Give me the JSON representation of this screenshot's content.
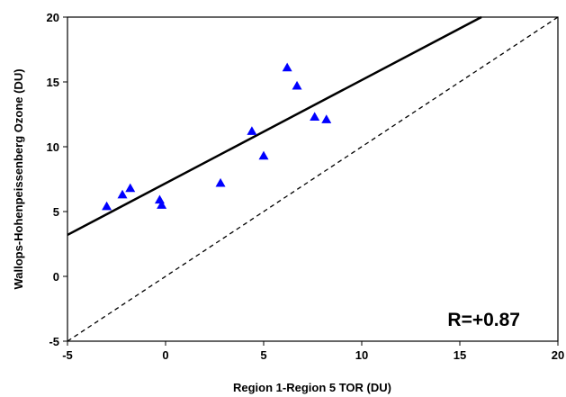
{
  "chart_data": {
    "type": "scatter",
    "title": "",
    "xlabel": "Region 1-Region 5 TOR (DU)",
    "ylabel": "Wallops-Hohenpeissenberg Ozone (DU)",
    "xlim": [
      -5,
      20
    ],
    "ylim": [
      -5,
      20
    ],
    "x_ticks": [
      "-5",
      "0",
      "5",
      "10",
      "15",
      "20"
    ],
    "y_ticks": [
      "-5",
      "0",
      "5",
      "10",
      "15",
      "20"
    ],
    "grid": false,
    "legend": "none",
    "series": [
      {
        "marker": "triangle",
        "color": "#0000ff",
        "points": [
          {
            "x": -3.0,
            "y": 5.4
          },
          {
            "x": -2.2,
            "y": 6.3
          },
          {
            "x": -1.8,
            "y": 6.8
          },
          {
            "x": -0.3,
            "y": 5.9
          },
          {
            "x": -0.2,
            "y": 5.5
          },
          {
            "x": 2.8,
            "y": 7.2
          },
          {
            "x": 4.4,
            "y": 11.2
          },
          {
            "x": 5.0,
            "y": 9.3
          },
          {
            "x": 6.2,
            "y": 16.1
          },
          {
            "x": 6.7,
            "y": 14.7
          },
          {
            "x": 7.6,
            "y": 12.3
          },
          {
            "x": 8.2,
            "y": 12.1
          }
        ]
      }
    ],
    "lines": [
      {
        "style": "solid",
        "from": {
          "x": -5,
          "y": 3.2
        },
        "to": {
          "x": 16.1,
          "y": 20
        }
      },
      {
        "style": "dashed",
        "from": {
          "x": -5,
          "y": -5
        },
        "to": {
          "x": 20,
          "y": 20
        }
      }
    ],
    "annotations": [
      {
        "text": "R=+0.87",
        "position": "bottom-right"
      }
    ]
  }
}
